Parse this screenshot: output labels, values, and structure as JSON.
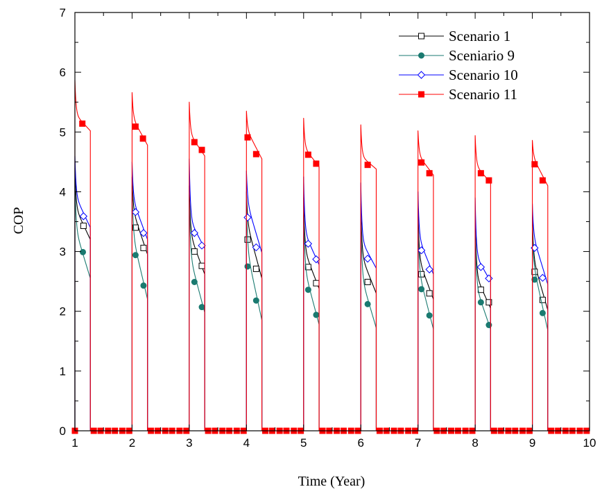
{
  "chart_data": {
    "type": "line",
    "xlabel": "Time (Year)",
    "ylabel": "COP",
    "xlim": [
      1,
      10
    ],
    "ylim": [
      0,
      7
    ],
    "x_ticks": [
      "1",
      "2",
      "3",
      "4",
      "5",
      "6",
      "7",
      "8",
      "9",
      "10"
    ],
    "y_ticks": [
      "0",
      "1",
      "2",
      "3",
      "4",
      "5",
      "6",
      "7"
    ],
    "x_minor_step": 0.5,
    "y_minor_step": 0.5,
    "grid": false,
    "legend_position": "top-right",
    "cycle": {
      "period_years": 1,
      "heating_season_length": 0.27,
      "off_value": 0
    },
    "series": [
      {
        "name": "Scenario 1",
        "color": "#000000",
        "marker": "square-open",
        "season_peak": [
          4.4,
          4.25,
          4.1,
          4.0,
          3.9,
          3.8,
          3.72,
          3.65,
          3.55
        ],
        "season_start": [
          3.75,
          3.72,
          3.32,
          3.5,
          3.05,
          2.95,
          2.9,
          2.62,
          2.92
        ],
        "season_end": [
          3.2,
          2.95,
          2.62,
          2.55,
          2.38,
          2.3,
          2.2,
          2.05,
          2.02
        ],
        "marker_points": [
          [
            1.15,
            3.43
          ],
          [
            2.06,
            3.4
          ],
          [
            2.2,
            3.06
          ],
          [
            3.09,
            3.0
          ],
          [
            3.22,
            2.76
          ],
          [
            4.02,
            3.2
          ],
          [
            4.17,
            2.71
          ],
          [
            5.08,
            2.74
          ],
          [
            5.22,
            2.47
          ],
          [
            6.12,
            2.49
          ],
          [
            7.06,
            2.62
          ],
          [
            7.2,
            2.3
          ],
          [
            8.1,
            2.36
          ],
          [
            8.24,
            2.15
          ],
          [
            9.04,
            2.66
          ],
          [
            9.18,
            2.19
          ]
        ]
      },
      {
        "name": "Sceniario 9",
        "color": "#1a7a70",
        "marker": "circle-filled",
        "season_peak": [
          4.2,
          4.1,
          3.95,
          3.85,
          3.75,
          3.65,
          3.55,
          3.45,
          3.35
        ],
        "season_start": [
          3.4,
          3.3,
          2.95,
          3.05,
          2.75,
          2.6,
          2.7,
          2.45,
          2.85
        ],
        "season_end": [
          2.55,
          2.2,
          1.98,
          1.85,
          1.78,
          1.72,
          1.7,
          1.7,
          1.68
        ],
        "marker_points": [
          [
            1.14,
            2.99
          ],
          [
            2.06,
            2.94
          ],
          [
            2.2,
            2.43
          ],
          [
            3.09,
            2.49
          ],
          [
            3.22,
            2.07
          ],
          [
            4.02,
            2.75
          ],
          [
            4.17,
            2.18
          ],
          [
            5.08,
            2.36
          ],
          [
            5.22,
            1.94
          ],
          [
            6.12,
            2.12
          ],
          [
            7.06,
            2.37
          ],
          [
            7.2,
            1.93
          ],
          [
            8.1,
            2.15
          ],
          [
            8.24,
            1.77
          ],
          [
            9.04,
            2.53
          ],
          [
            9.18,
            1.97
          ]
        ]
      },
      {
        "name": "Scenario 10",
        "color": "#0000ff",
        "marker": "diamond-open",
        "season_peak": [
          4.6,
          4.5,
          4.55,
          4.35,
          4.25,
          4.15,
          4.0,
          3.9,
          3.8
        ],
        "season_start": [
          3.95,
          3.9,
          3.55,
          3.85,
          3.35,
          3.2,
          3.25,
          2.95,
          3.3
        ],
        "season_end": [
          3.4,
          3.2,
          3.05,
          2.98,
          2.78,
          2.72,
          2.62,
          2.5,
          2.45
        ],
        "marker_points": [
          [
            1.15,
            3.59
          ],
          [
            2.06,
            3.66
          ],
          [
            2.2,
            3.31
          ],
          [
            3.09,
            3.31
          ],
          [
            3.22,
            3.1
          ],
          [
            4.02,
            3.57
          ],
          [
            4.17,
            3.07
          ],
          [
            5.08,
            3.13
          ],
          [
            5.22,
            2.87
          ],
          [
            6.12,
            2.88
          ],
          [
            7.06,
            3.02
          ],
          [
            7.2,
            2.7
          ],
          [
            8.1,
            2.74
          ],
          [
            8.24,
            2.55
          ],
          [
            9.04,
            3.06
          ],
          [
            9.18,
            2.56
          ]
        ]
      },
      {
        "name": "Scenario 11",
        "color": "#ff0000",
        "marker": "square-filled",
        "season_peak": [
          5.87,
          5.66,
          5.5,
          5.35,
          5.23,
          5.12,
          5.02,
          4.94,
          4.86
        ],
        "season_start": [
          5.3,
          5.25,
          4.98,
          5.05,
          4.75,
          4.6,
          4.62,
          4.45,
          4.6
        ],
        "season_end": [
          5.02,
          4.78,
          4.6,
          4.55,
          4.42,
          4.38,
          4.28,
          4.15,
          4.1
        ],
        "marker_points": [
          [
            1.13,
            5.14
          ],
          [
            2.06,
            5.09
          ],
          [
            2.19,
            4.89
          ],
          [
            3.09,
            4.83
          ],
          [
            3.22,
            4.7
          ],
          [
            4.02,
            4.91
          ],
          [
            4.17,
            4.63
          ],
          [
            5.08,
            4.62
          ],
          [
            5.22,
            4.47
          ],
          [
            6.12,
            4.45
          ],
          [
            7.06,
            4.49
          ],
          [
            7.2,
            4.31
          ],
          [
            8.1,
            4.31
          ],
          [
            8.24,
            4.19
          ],
          [
            9.04,
            4.46
          ],
          [
            9.18,
            4.19
          ]
        ],
        "zero_markers": [
          1.0,
          1.33,
          1.45,
          1.58,
          1.7,
          1.83,
          1.95,
          2.33,
          2.45,
          2.58,
          2.7,
          2.83,
          2.95,
          3.33,
          3.45,
          3.58,
          3.7,
          3.83,
          3.95,
          4.33,
          4.45,
          4.58,
          4.7,
          4.83,
          4.95,
          5.33,
          5.45,
          5.58,
          5.7,
          5.83,
          5.95,
          6.33,
          6.45,
          6.58,
          6.7,
          6.83,
          6.95,
          7.33,
          7.45,
          7.58,
          7.7,
          7.83,
          7.95,
          8.33,
          8.45,
          8.58,
          8.7,
          8.83,
          8.95,
          9.33,
          9.45,
          9.58,
          9.7,
          9.83,
          9.95
        ]
      }
    ]
  }
}
